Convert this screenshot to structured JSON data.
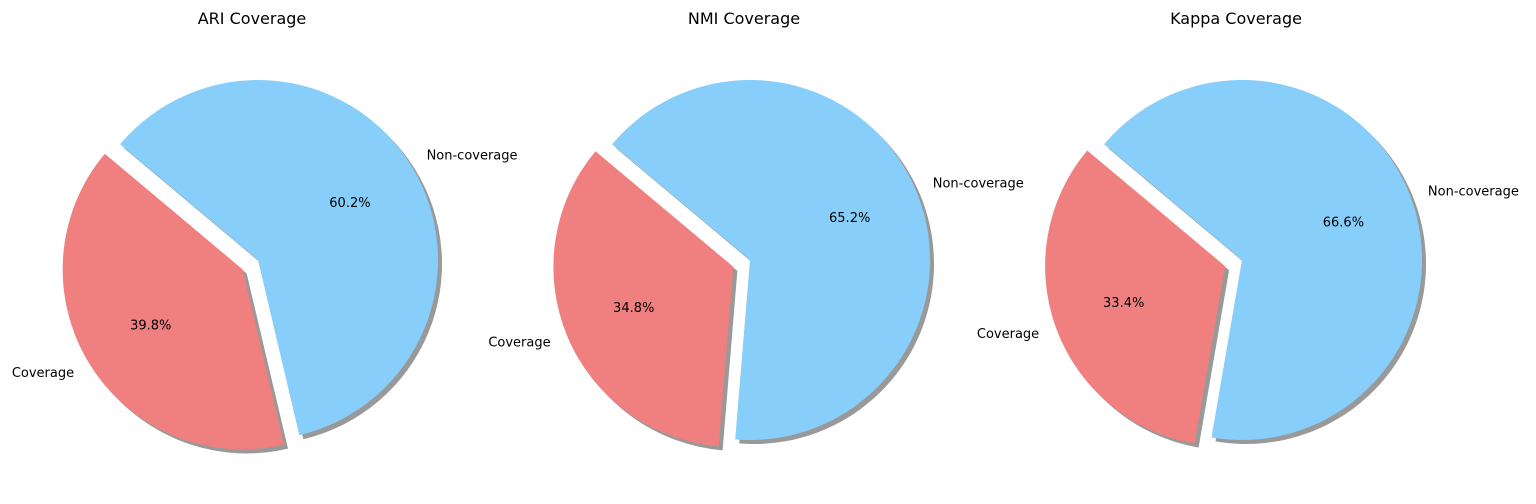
{
  "chart_data": [
    {
      "type": "pie",
      "title": "ARI Coverage",
      "labels": [
        "Coverage",
        "Non-coverage"
      ],
      "values": [
        39.8,
        60.2
      ],
      "percent_labels": [
        "39.8%",
        "60.2%"
      ],
      "colors": [
        "#f08080",
        "#87cefa"
      ],
      "explode": [
        0.1,
        0
      ],
      "start_angle_deg": 140,
      "shadow": true
    },
    {
      "type": "pie",
      "title": "NMI Coverage",
      "labels": [
        "Coverage",
        "Non-coverage"
      ],
      "values": [
        34.8,
        65.2
      ],
      "percent_labels": [
        "34.8%",
        "65.2%"
      ],
      "colors": [
        "#f08080",
        "#87cefa"
      ],
      "explode": [
        0.1,
        0
      ],
      "start_angle_deg": 140,
      "shadow": true
    },
    {
      "type": "pie",
      "title": "Kappa Coverage",
      "labels": [
        "Coverage",
        "Non-coverage"
      ],
      "values": [
        33.4,
        66.6
      ],
      "percent_labels": [
        "33.4%",
        "66.6%"
      ],
      "colors": [
        "#f08080",
        "#87cefa"
      ],
      "explode": [
        0.1,
        0
      ],
      "start_angle_deg": 140,
      "shadow": true
    }
  ]
}
